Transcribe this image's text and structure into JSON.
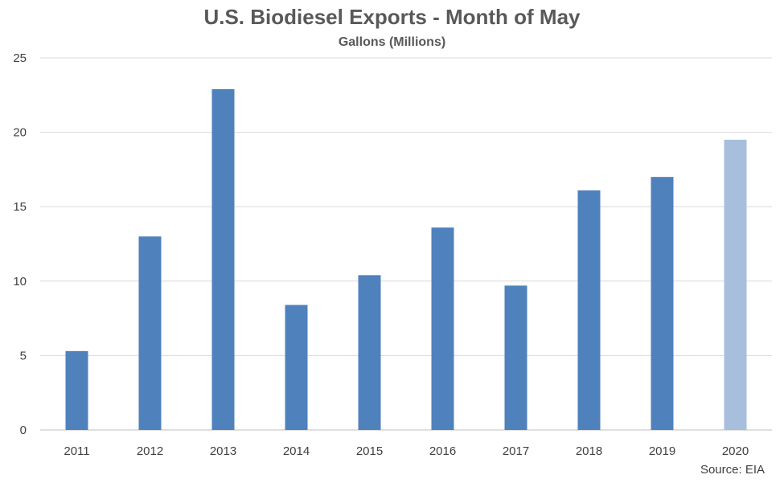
{
  "chart_data": {
    "type": "bar",
    "title": "U.S. Biodiesel Exports - Month of May",
    "subtitle": "Gallons (Millions)",
    "source": "Source: EIA",
    "categories": [
      "2011",
      "2012",
      "2013",
      "2014",
      "2015",
      "2016",
      "2017",
      "2018",
      "2019",
      "2020"
    ],
    "values": [
      5.3,
      13.0,
      22.9,
      8.4,
      10.4,
      13.6,
      9.7,
      16.1,
      17.0,
      19.5
    ],
    "highlight_index": 9,
    "ylim": [
      0,
      25
    ],
    "yticks": [
      0,
      5,
      10,
      15,
      20,
      25
    ],
    "grid": true,
    "legend": "none",
    "colors": {
      "bar": "#4f81bd",
      "bar_highlight": "#a7bfdd",
      "grid": "#d9d9d9",
      "axis": "#bfbfbf"
    }
  }
}
